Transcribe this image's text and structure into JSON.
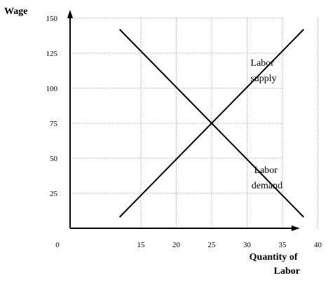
{
  "chart_data": {
    "type": "line",
    "xlabel": [
      "Quantity of",
      "Labor"
    ],
    "ylabel": "Wage",
    "xlim": [
      5,
      40
    ],
    "ylim": [
      0,
      150
    ],
    "x_ticks": [
      15,
      20,
      25,
      30,
      35,
      40
    ],
    "y_ticks": [
      25,
      50,
      75,
      100,
      125,
      150
    ],
    "origin_label": "0",
    "grid": true,
    "series": [
      {
        "name": [
          "Labor",
          "supply"
        ],
        "points": [
          [
            12,
            8
          ],
          [
            38,
            142
          ]
        ]
      },
      {
        "name": [
          "Labor",
          "demand"
        ],
        "points": [
          [
            12,
            142
          ],
          [
            38,
            8
          ]
        ]
      }
    ]
  }
}
